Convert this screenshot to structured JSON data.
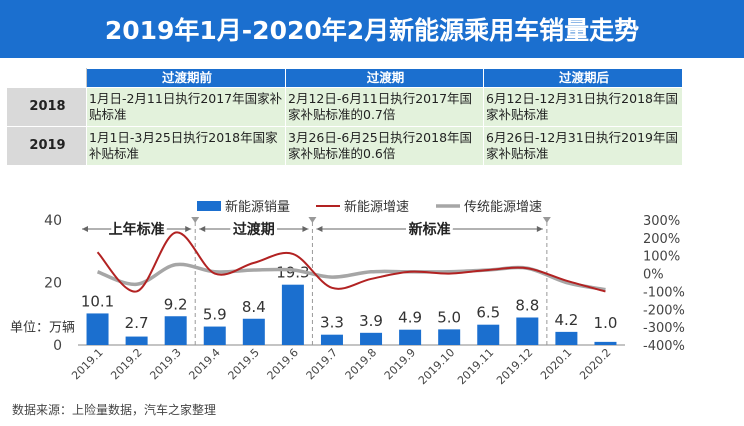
{
  "title": "2019年1月-2020年2月新能源乘用车销量走势",
  "table": {
    "headers": [
      "过渡期前",
      "过渡期",
      "过渡期后"
    ],
    "rows": [
      {
        "year": "2018",
        "cells": [
          "1月日-2月11日执行2017年国家补贴标准",
          "2月12日-6月11日执行2017年国家补贴标准的0.7倍",
          "6月12日-12月31日执行2018年国家补贴标准"
        ]
      },
      {
        "year": "2019",
        "cells": [
          "1月1日-3月25日执行2018年国家补贴标准",
          "3月26日-6月25日执行2018年国家补贴标准的0.6倍",
          "6月26日-12月31日执行2019年国家补贴标准"
        ]
      }
    ]
  },
  "chart_data": {
    "type": "bar",
    "categories": [
      "2019.1",
      "2019.2",
      "2019.3",
      "2019.4",
      "2019.5",
      "2019.6",
      "2019.7",
      "2019.8",
      "2019.9",
      "2019.10",
      "2019.11",
      "2019.12",
      "2020.1",
      "2020.2"
    ],
    "series": [
      {
        "name": "新能源销量",
        "type": "bar",
        "axis": "left",
        "color": "#1b6fcf",
        "values": [
          10.1,
          2.7,
          9.2,
          5.9,
          8.4,
          19.3,
          3.3,
          3.9,
          4.9,
          5.0,
          6.5,
          8.8,
          4.2,
          1.0
        ]
      },
      {
        "name": "新能源增速",
        "type": "line",
        "axis": "right",
        "color": "#b22222",
        "values": [
          120,
          -100,
          230,
          0,
          60,
          110,
          -80,
          -30,
          10,
          0,
          20,
          30,
          -40,
          -100
        ]
      },
      {
        "name": "传统能源增速",
        "type": "line",
        "axis": "right",
        "color": "#a6a6a6",
        "values": [
          10,
          -60,
          50,
          10,
          20,
          20,
          -20,
          10,
          10,
          10,
          20,
          30,
          -50,
          -90
        ]
      }
    ],
    "ylabel": "单位：万辆",
    "y_left": {
      "ylim": [
        0,
        40
      ],
      "ticks": [
        "0",
        "20",
        "40"
      ]
    },
    "y_right": {
      "ylim": [
        -400,
        300
      ],
      "ticks": [
        "-400%",
        "-300%",
        "-200%",
        "-100%",
        "0%",
        "100%",
        "200%",
        "300%"
      ]
    },
    "annotations": [
      "上年标准",
      "过渡期",
      "新标准"
    ],
    "legend_position": "top"
  },
  "footer": "数据来源：上险量数据，汽车之家整理"
}
